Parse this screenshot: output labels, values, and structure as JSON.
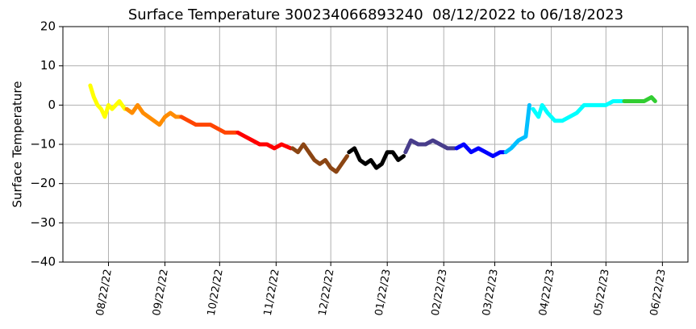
{
  "chart_data": {
    "type": "line",
    "title": "Surface Temperature 300234066893240  08/12/2022 to 06/18/2023",
    "ylabel": "Surface Temperature",
    "xlim": [
      "2022-07-28",
      "2023-07-06"
    ],
    "xticks": [
      {
        "value": "2022-08-22",
        "label": "08/22/22"
      },
      {
        "value": "2022-09-22",
        "label": "09/22/22"
      },
      {
        "value": "2022-10-22",
        "label": "10/22/22"
      },
      {
        "value": "2022-11-22",
        "label": "11/22/22"
      },
      {
        "value": "2022-12-22",
        "label": "12/22/22"
      },
      {
        "value": "2023-01-22",
        "label": "01/22/23"
      },
      {
        "value": "2023-02-22",
        "label": "02/22/23"
      },
      {
        "value": "2023-03-22",
        "label": "03/22/23"
      },
      {
        "value": "2023-04-22",
        "label": "04/22/23"
      },
      {
        "value": "2023-05-22",
        "label": "05/22/23"
      },
      {
        "value": "2023-06-22",
        "label": "06/22/23"
      }
    ],
    "ylim": [
      -40,
      20
    ],
    "yticks": [
      {
        "value": -40,
        "label": "−40"
      },
      {
        "value": -30,
        "label": "−30"
      },
      {
        "value": -20,
        "label": "−20"
      },
      {
        "value": -10,
        "label": "−10"
      },
      0,
      10,
      20
    ],
    "grid": true,
    "series": [
      {
        "color": "#ffff00",
        "x": [
          "2022-08-12",
          "2022-08-14",
          "2022-08-16",
          "2022-08-18",
          "2022-08-20",
          "2022-08-22",
          "2022-08-24",
          "2022-08-26",
          "2022-08-28",
          "2022-08-31"
        ],
        "values": [
          5,
          2,
          0,
          -1,
          -3,
          0,
          -1,
          0,
          1,
          -1
        ]
      },
      {
        "color": "#ff8c00",
        "x": [
          "2022-09-01",
          "2022-09-04",
          "2022-09-07",
          "2022-09-10",
          "2022-09-13",
          "2022-09-16",
          "2022-09-19",
          "2022-09-22",
          "2022-09-25",
          "2022-09-28",
          "2022-09-30"
        ],
        "values": [
          -1,
          -2,
          0,
          -2,
          -3,
          -4,
          -5,
          -3,
          -2,
          -3,
          -3
        ]
      },
      {
        "color": "#ff4500",
        "x": [
          "2022-10-01",
          "2022-10-05",
          "2022-10-09",
          "2022-10-13",
          "2022-10-17",
          "2022-10-21",
          "2022-10-25",
          "2022-10-29",
          "2022-10-31"
        ],
        "values": [
          -3,
          -4,
          -5,
          -5,
          -5,
          -6,
          -7,
          -7,
          -7
        ]
      },
      {
        "color": "#ff0000",
        "x": [
          "2022-11-01",
          "2022-11-05",
          "2022-11-09",
          "2022-11-13",
          "2022-11-17",
          "2022-11-21",
          "2022-11-25",
          "2022-11-30"
        ],
        "values": [
          -7,
          -8,
          -9,
          -10,
          -10,
          -11,
          -10,
          -11
        ]
      },
      {
        "color": "#8b4513",
        "x": [
          "2022-12-01",
          "2022-12-04",
          "2022-12-07",
          "2022-12-10",
          "2022-12-13",
          "2022-12-16",
          "2022-12-19",
          "2022-12-22",
          "2022-12-25",
          "2022-12-28",
          "2022-12-31"
        ],
        "values": [
          -11,
          -12,
          -10,
          -12,
          -14,
          -15,
          -14,
          -16,
          -17,
          -15,
          -13
        ]
      },
      {
        "color": "#000000",
        "x": [
          "2023-01-01",
          "2023-01-04",
          "2023-01-07",
          "2023-01-10",
          "2023-01-13",
          "2023-01-16",
          "2023-01-19",
          "2023-01-22",
          "2023-01-25",
          "2023-01-28",
          "2023-01-31"
        ],
        "values": [
          -12,
          -11,
          -14,
          -15,
          -14,
          -16,
          -15,
          -12,
          -12,
          -14,
          -13
        ]
      },
      {
        "color": "#483d8b",
        "x": [
          "2023-02-01",
          "2023-02-04",
          "2023-02-08",
          "2023-02-12",
          "2023-02-16",
          "2023-02-20",
          "2023-02-24",
          "2023-02-28"
        ],
        "values": [
          -12,
          -9,
          -10,
          -10,
          -9,
          -10,
          -11,
          -11
        ]
      },
      {
        "color": "#0000ff",
        "x": [
          "2023-03-01",
          "2023-03-05",
          "2023-03-09",
          "2023-03-13",
          "2023-03-17",
          "2023-03-21",
          "2023-03-25",
          "2023-03-27"
        ],
        "values": [
          -11,
          -10,
          -12,
          -11,
          -12,
          -13,
          -12,
          -12
        ]
      },
      {
        "color": "#00bfff",
        "x": [
          "2023-03-28",
          "2023-03-31",
          "2023-04-04",
          "2023-04-08",
          "2023-04-10"
        ],
        "values": [
          -12,
          -11,
          -9,
          -8,
          0
        ]
      },
      {
        "color": "#00ffff",
        "x": [
          "2023-04-12",
          "2023-04-15",
          "2023-04-17",
          "2023-04-20",
          "2023-04-24",
          "2023-04-28",
          "2023-05-02",
          "2023-05-06",
          "2023-05-10",
          "2023-05-14",
          "2023-05-18",
          "2023-05-22",
          "2023-05-26",
          "2023-05-31"
        ],
        "values": [
          -1,
          -3,
          0,
          -2,
          -4,
          -4,
          -3,
          -2,
          0,
          0,
          0,
          0,
          1,
          1
        ]
      },
      {
        "color": "#32cd32",
        "x": [
          "2023-06-01",
          "2023-06-06",
          "2023-06-12",
          "2023-06-16",
          "2023-06-18"
        ],
        "values": [
          1,
          1,
          1,
          2,
          1
        ]
      }
    ]
  }
}
